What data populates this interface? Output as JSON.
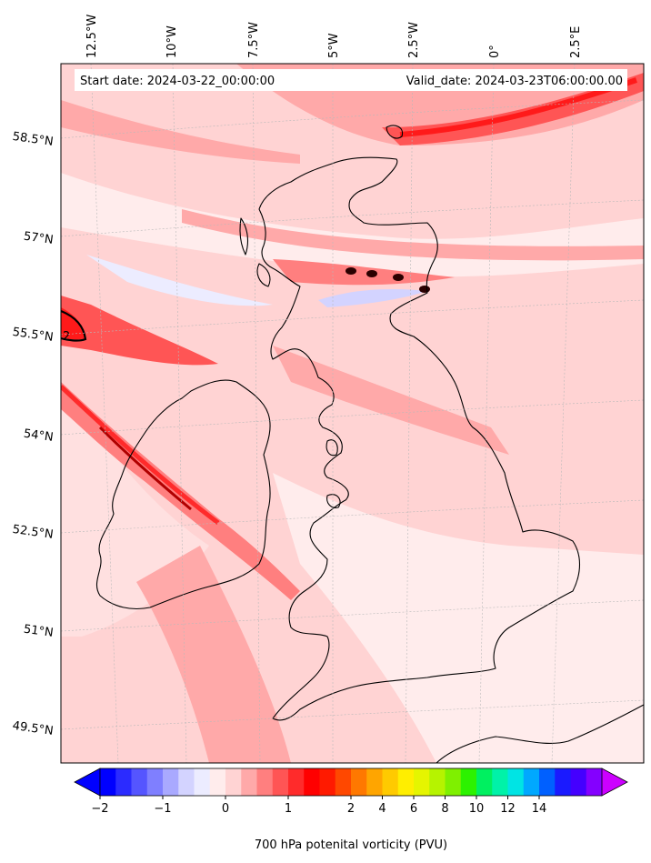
{
  "header": {
    "start_date": "Start date: 2024-03-22_00:00:00",
    "valid_date": "Valid_date: 2024-03-23T06:00:00.00"
  },
  "map": {
    "variable": "700 hPa potential vorticity",
    "contour_label": "2",
    "lon_labels": [
      "12.5°W",
      "10°W",
      "7.5°W",
      "5°W",
      "2.5°W",
      "0°",
      "2.5°E"
    ],
    "lat_labels": [
      "58.5°N",
      "57°N",
      "55.5°N",
      "54°N",
      "52.5°N",
      "51°N",
      "49.5°N"
    ]
  },
  "colorbar": {
    "label": "700 hPa potenital vorticity (PVU)",
    "ticks": [
      "−2",
      "−1",
      "0",
      "1",
      "2",
      "4",
      "6",
      "8",
      "10",
      "12",
      "14"
    ],
    "colors": [
      "#0000ff",
      "#2b2bff",
      "#5555ff",
      "#7f7fff",
      "#a9a9ff",
      "#d3d3ff",
      "#ececff",
      "#ffecec",
      "#ffd3d3",
      "#ffa9a9",
      "#ff7f7f",
      "#ff5555",
      "#ff2b2b",
      "#ff0000",
      "#ff1a00",
      "#ff4800",
      "#ff7800",
      "#ffa500",
      "#ffca00",
      "#ffee00",
      "#e5f500",
      "#b6f300",
      "#7ff000",
      "#2cf200",
      "#00f060",
      "#00f2a8",
      "#00e4e4",
      "#00a8ff",
      "#0060ff",
      "#1a1aff",
      "#4400ff",
      "#8400ff"
    ],
    "extend_low": "#0000ff",
    "extend_high": "#cc00ff"
  }
}
